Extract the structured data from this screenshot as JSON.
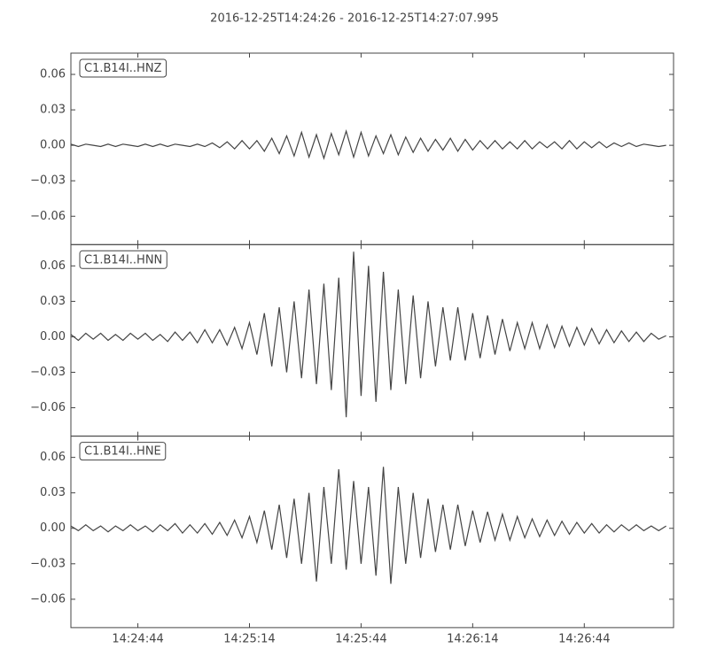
{
  "chart_data": [
    {
      "type": "line",
      "title": "2016-12-25T14:24:26  -  2016-12-25T14:27:07.995",
      "x": [
        51866,
        51868,
        51870,
        51872,
        51874,
        51876,
        51878,
        51880,
        51882,
        51884,
        51886,
        51888,
        51890,
        51892,
        51894,
        51896,
        51898,
        51900,
        51902,
        51904,
        51906,
        51908,
        51910,
        51912,
        51914,
        51916,
        51918,
        51920,
        51922,
        51924,
        51926,
        51928,
        51930,
        51932,
        51934,
        51936,
        51938,
        51940,
        51942,
        51944,
        51946,
        51948,
        51950,
        51952,
        51954,
        51956,
        51958,
        51960,
        51962,
        51964,
        51966,
        51968,
        51970,
        51972,
        51974,
        51976,
        51978,
        51980,
        51982,
        51984,
        51986,
        51988,
        51990,
        51992,
        51994,
        51996,
        51998,
        52000,
        52002,
        52004,
        52006,
        52008,
        52010,
        52012,
        52014,
        52016,
        52018,
        52020,
        52022,
        52024,
        52026
      ],
      "series": [
        {
          "name": "C1.B14I..HNZ",
          "color": "#444444",
          "values": [
            0.001,
            -0.001,
            0.001,
            0,
            -0.001,
            0.001,
            -0.001,
            0.001,
            0,
            -0.001,
            0.001,
            -0.001,
            0.001,
            -0.001,
            0.001,
            0,
            -0.001,
            0.001,
            -0.001,
            0.002,
            -0.002,
            0.003,
            -0.003,
            0.004,
            -0.003,
            0.004,
            -0.005,
            0.006,
            -0.007,
            0.008,
            -0.009,
            0.011,
            -0.01,
            0.009,
            -0.011,
            0.01,
            -0.008,
            0.012,
            -0.01,
            0.011,
            -0.009,
            0.008,
            -0.007,
            0.009,
            -0.008,
            0.007,
            -0.006,
            0.006,
            -0.005,
            0.005,
            -0.004,
            0.006,
            -0.005,
            0.005,
            -0.004,
            0.004,
            -0.003,
            0.004,
            -0.003,
            0.003,
            -0.003,
            0.004,
            -0.003,
            0.003,
            -0.002,
            0.003,
            -0.003,
            0.004,
            -0.003,
            0.003,
            -0.002,
            0.003,
            -0.002,
            0.002,
            -0.001,
            0.002,
            -0.001,
            0.001,
            0,
            -0.001,
            0
          ]
        }
      ],
      "xlim": [
        51866,
        52027.995
      ],
      "ylim": [
        -0.084,
        0.078
      ],
      "yticks": [
        {
          "value": -0.06,
          "label": "−0.06"
        },
        {
          "value": -0.03,
          "label": "−0.03"
        },
        {
          "value": 0,
          "label": "0.00"
        },
        {
          "value": 0.03,
          "label": "0.03"
        },
        {
          "value": 0.06,
          "label": "0.06"
        }
      ]
    },
    {
      "type": "line",
      "x": [
        51866,
        51868,
        51870,
        51872,
        51874,
        51876,
        51878,
        51880,
        51882,
        51884,
        51886,
        51888,
        51890,
        51892,
        51894,
        51896,
        51898,
        51900,
        51902,
        51904,
        51906,
        51908,
        51910,
        51912,
        51914,
        51916,
        51918,
        51920,
        51922,
        51924,
        51926,
        51928,
        51930,
        51932,
        51934,
        51936,
        51938,
        51940,
        51942,
        51944,
        51946,
        51948,
        51950,
        51952,
        51954,
        51956,
        51958,
        51960,
        51962,
        51964,
        51966,
        51968,
        51970,
        51972,
        51974,
        51976,
        51978,
        51980,
        51982,
        51984,
        51986,
        51988,
        51990,
        51992,
        51994,
        51996,
        51998,
        52000,
        52002,
        52004,
        52006,
        52008,
        52010,
        52012,
        52014,
        52016,
        52018,
        52020,
        52022,
        52024,
        52026
      ],
      "series": [
        {
          "name": "C1.B14I..HNN",
          "color": "#444444",
          "values": [
            0.002,
            -0.003,
            0.003,
            -0.002,
            0.003,
            -0.003,
            0.002,
            -0.003,
            0.003,
            -0.002,
            0.003,
            -0.003,
            0.002,
            -0.004,
            0.004,
            -0.003,
            0.004,
            -0.005,
            0.006,
            -0.005,
            0.006,
            -0.007,
            0.008,
            -0.01,
            0.012,
            -0.015,
            0.02,
            -0.025,
            0.025,
            -0.03,
            0.03,
            -0.035,
            0.04,
            -0.04,
            0.045,
            -0.045,
            0.05,
            -0.068,
            0.072,
            -0.05,
            0.06,
            -0.055,
            0.055,
            -0.045,
            0.04,
            -0.04,
            0.035,
            -0.035,
            0.03,
            -0.025,
            0.025,
            -0.02,
            0.025,
            -0.02,
            0.02,
            -0.018,
            0.018,
            -0.015,
            0.015,
            -0.012,
            0.012,
            -0.01,
            0.012,
            -0.01,
            0.01,
            -0.009,
            0.009,
            -0.008,
            0.008,
            -0.007,
            0.007,
            -0.006,
            0.006,
            -0.005,
            0.005,
            -0.004,
            0.004,
            -0.004,
            0.003,
            -0.002,
            0.001
          ]
        }
      ],
      "xlim": [
        51866,
        52027.995
      ],
      "ylim": [
        -0.084,
        0.078
      ],
      "yticks": [
        {
          "value": -0.06,
          "label": "−0.06"
        },
        {
          "value": -0.03,
          "label": "−0.03"
        },
        {
          "value": 0,
          "label": "0.00"
        },
        {
          "value": 0.03,
          "label": "0.03"
        },
        {
          "value": 0.06,
          "label": "0.06"
        }
      ]
    },
    {
      "type": "line",
      "x": [
        51866,
        51868,
        51870,
        51872,
        51874,
        51876,
        51878,
        51880,
        51882,
        51884,
        51886,
        51888,
        51890,
        51892,
        51894,
        51896,
        51898,
        51900,
        51902,
        51904,
        51906,
        51908,
        51910,
        51912,
        51914,
        51916,
        51918,
        51920,
        51922,
        51924,
        51926,
        51928,
        51930,
        51932,
        51934,
        51936,
        51938,
        51940,
        51942,
        51944,
        51946,
        51948,
        51950,
        51952,
        51954,
        51956,
        51958,
        51960,
        51962,
        51964,
        51966,
        51968,
        51970,
        51972,
        51974,
        51976,
        51978,
        51980,
        51982,
        51984,
        51986,
        51988,
        51990,
        51992,
        51994,
        51996,
        51998,
        52000,
        52002,
        52004,
        52006,
        52008,
        52010,
        52012,
        52014,
        52016,
        52018,
        52020,
        52022,
        52024,
        52026
      ],
      "series": [
        {
          "name": "C1.B14I..HNE",
          "color": "#444444",
          "values": [
            0.002,
            -0.002,
            0.003,
            -0.002,
            0.002,
            -0.003,
            0.002,
            -0.002,
            0.003,
            -0.002,
            0.002,
            -0.003,
            0.003,
            -0.002,
            0.004,
            -0.004,
            0.003,
            -0.004,
            0.004,
            -0.005,
            0.005,
            -0.006,
            0.007,
            -0.008,
            0.01,
            -0.012,
            0.015,
            -0.018,
            0.02,
            -0.025,
            0.025,
            -0.03,
            0.03,
            -0.045,
            0.035,
            -0.03,
            0.05,
            -0.035,
            0.04,
            -0.03,
            0.035,
            -0.04,
            0.052,
            -0.047,
            0.035,
            -0.03,
            0.03,
            -0.025,
            0.025,
            -0.02,
            0.02,
            -0.018,
            0.02,
            -0.015,
            0.015,
            -0.012,
            0.014,
            -0.01,
            0.012,
            -0.01,
            0.01,
            -0.008,
            0.008,
            -0.007,
            0.007,
            -0.006,
            0.006,
            -0.005,
            0.005,
            -0.004,
            0.004,
            -0.004,
            0.003,
            -0.003,
            0.003,
            -0.002,
            0.003,
            -0.002,
            0.002,
            -0.002,
            0.002
          ]
        }
      ],
      "xlim": [
        51866,
        52027.995
      ],
      "ylim": [
        -0.084,
        0.078
      ],
      "yticks": [
        {
          "value": -0.06,
          "label": "−0.06"
        },
        {
          "value": -0.03,
          "label": "−0.03"
        },
        {
          "value": 0,
          "label": "0.00"
        },
        {
          "value": 0.03,
          "label": "0.03"
        },
        {
          "value": 0.06,
          "label": "0.06"
        }
      ],
      "xticks": [
        {
          "value": 51884,
          "label": "14:24:44"
        },
        {
          "value": 51914,
          "label": "14:25:14"
        },
        {
          "value": 51944,
          "label": "14:25:44"
        },
        {
          "value": 51974,
          "label": "14:26:14"
        },
        {
          "value": 52004,
          "label": "14:26:44"
        }
      ]
    }
  ]
}
